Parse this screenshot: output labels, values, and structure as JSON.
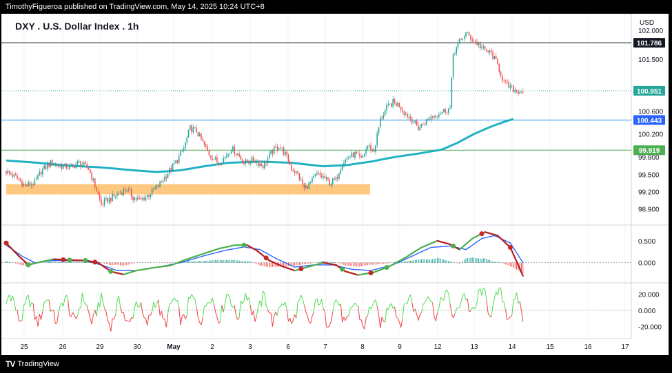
{
  "header": {
    "attribution": "TimothyFigueroa published on TradingView.com, May 14, 2025 10:24 UTC+8"
  },
  "chart": {
    "title": "DXY . U.S. Dollar Index . 1h",
    "currency": "USD"
  },
  "footer": {
    "brand": "TradingView",
    "logo_icon": "tradingview-logo-icon"
  },
  "colors": {
    "up": "#26a69a",
    "down": "#ef5350",
    "ma": "#20b2c4",
    "zone": "#ffc880",
    "macd_signal": "#b71c1c",
    "macd_line": "#2962ff",
    "cross_up": "#4caf50",
    "cross_down": "#c62828",
    "osc_up": "#4cdc4c",
    "osc_down": "#f04040"
  },
  "chart_data": [
    {
      "type": "candlestick",
      "title": "DXY . U.S. Dollar Index . 1h",
      "x_ticks": [
        "25",
        "26",
        "29",
        "30",
        "May",
        "2",
        "3",
        "6",
        "7",
        "8",
        "9",
        "12",
        "13",
        "14",
        "15",
        "16",
        "17"
      ],
      "y_ticks": [
        "102.000",
        "101.500",
        "100.600",
        "100.200",
        "99.800",
        "99.500",
        "99.200",
        "98.900"
      ],
      "y_range": [
        98.75,
        102.05
      ],
      "price_path": [
        [
          0,
          99.55
        ],
        [
          6,
          99.45
        ],
        [
          12,
          99.3
        ],
        [
          18,
          99.35
        ],
        [
          22,
          99.55
        ],
        [
          28,
          99.7
        ],
        [
          32,
          99.65
        ],
        [
          40,
          99.62
        ],
        [
          46,
          99.7
        ],
        [
          52,
          99.6
        ],
        [
          56,
          99.3
        ],
        [
          60,
          98.98
        ],
        [
          64,
          99.05
        ],
        [
          70,
          99.15
        ],
        [
          76,
          99.25
        ],
        [
          80,
          99.1
        ],
        [
          85,
          99.05
        ],
        [
          90,
          99.15
        ],
        [
          96,
          99.3
        ],
        [
          100,
          99.45
        ],
        [
          104,
          99.6
        ],
        [
          108,
          99.75
        ],
        [
          112,
          99.95
        ],
        [
          116,
          100.3
        ],
        [
          120,
          100.25
        ],
        [
          124,
          100.05
        ],
        [
          128,
          99.85
        ],
        [
          134,
          99.7
        ],
        [
          138,
          99.8
        ],
        [
          142,
          99.95
        ],
        [
          146,
          99.85
        ],
        [
          150,
          99.7
        ],
        [
          156,
          99.75
        ],
        [
          162,
          99.65
        ],
        [
          168,
          99.9
        ],
        [
          172,
          100.0
        ],
        [
          176,
          99.85
        ],
        [
          180,
          99.6
        ],
        [
          184,
          99.5
        ],
        [
          188,
          99.25
        ],
        [
          192,
          99.35
        ],
        [
          196,
          99.5
        ],
        [
          200,
          99.45
        ],
        [
          204,
          99.35
        ],
        [
          208,
          99.4
        ],
        [
          212,
          99.7
        ],
        [
          216,
          99.8
        ],
        [
          220,
          99.85
        ],
        [
          224,
          99.75
        ],
        [
          228,
          100.0
        ],
        [
          232,
          99.9
        ],
        [
          236,
          100.45
        ],
        [
          240,
          100.65
        ],
        [
          244,
          100.75
        ],
        [
          248,
          100.7
        ],
        [
          252,
          100.55
        ],
        [
          256,
          100.45
        ],
        [
          260,
          100.3
        ],
        [
          264,
          100.4
        ],
        [
          268,
          100.5
        ],
        [
          272,
          100.55
        ],
        [
          276,
          100.6
        ],
        [
          280,
          100.65
        ],
        [
          282,
          101.6
        ],
        [
          286,
          101.8
        ],
        [
          290,
          101.95
        ],
        [
          294,
          101.85
        ],
        [
          298,
          101.75
        ],
        [
          302,
          101.65
        ],
        [
          306,
          101.6
        ],
        [
          310,
          101.4
        ],
        [
          314,
          101.1
        ],
        [
          318,
          101.0
        ],
        [
          322,
          100.95
        ],
        [
          326,
          100.95
        ]
      ],
      "ma_path": [
        [
          0,
          99.74
        ],
        [
          20,
          99.7
        ],
        [
          40,
          99.65
        ],
        [
          60,
          99.62
        ],
        [
          80,
          99.57
        ],
        [
          95,
          99.54
        ],
        [
          110,
          99.57
        ],
        [
          125,
          99.64
        ],
        [
          140,
          99.7
        ],
        [
          160,
          99.72
        ],
        [
          180,
          99.7
        ],
        [
          200,
          99.64
        ],
        [
          215,
          99.66
        ],
        [
          230,
          99.72
        ],
        [
          245,
          99.8
        ],
        [
          260,
          99.86
        ],
        [
          275,
          99.93
        ],
        [
          285,
          100.05
        ],
        [
          295,
          100.2
        ],
        [
          305,
          100.32
        ],
        [
          315,
          100.42
        ],
        [
          320,
          100.46
        ]
      ],
      "demand_zone": [
        99.15,
        99.33
      ],
      "levels": [
        {
          "label": "101.786",
          "value": 101.786,
          "style": "solid",
          "color": "#131722",
          "tag_bg": "#131722"
        },
        {
          "label": "100.951",
          "value": 100.951,
          "style": "dotted",
          "color": "#26a69a",
          "tag_bg": "#26a69a"
        },
        {
          "label": "100.443",
          "value": 100.443,
          "style": "solid",
          "color": "#2196f3",
          "tag_bg": "#2962ff"
        },
        {
          "label": "99.919",
          "value": 99.919,
          "style": "solid",
          "color": "#4caf50",
          "tag_bg": "#4caf50"
        }
      ]
    },
    {
      "type": "line",
      "title": "",
      "y_ticks": [
        "0.500",
        "0.000"
      ],
      "y_range": [
        -0.35,
        0.75
      ],
      "series": [
        {
          "values": [
            [
              0,
              0.45
            ],
            [
              8,
              0.15
            ],
            [
              14,
              -0.05
            ],
            [
              22,
              0.02
            ],
            [
              30,
              0.08
            ],
            [
              40,
              0.06
            ],
            [
              50,
              0.05
            ],
            [
              58,
              0.0
            ],
            [
              66,
              -0.2
            ],
            [
              74,
              -0.27
            ],
            [
              82,
              -0.18
            ],
            [
              92,
              -0.12
            ],
            [
              104,
              -0.06
            ],
            [
              114,
              0.08
            ],
            [
              124,
              0.2
            ],
            [
              134,
              0.32
            ],
            [
              144,
              0.4
            ],
            [
              152,
              0.4
            ],
            [
              158,
              0.28
            ],
            [
              166,
              0.05
            ],
            [
              174,
              -0.08
            ],
            [
              182,
              -0.18
            ],
            [
              190,
              -0.1
            ],
            [
              200,
              0.0
            ],
            [
              208,
              -0.05
            ],
            [
              214,
              -0.2
            ],
            [
              222,
              -0.28
            ],
            [
              232,
              -0.22
            ],
            [
              242,
              -0.08
            ],
            [
              252,
              0.12
            ],
            [
              262,
              0.35
            ],
            [
              272,
              0.5
            ],
            [
              280,
              0.42
            ],
            [
              286,
              0.3
            ],
            [
              294,
              0.55
            ],
            [
              302,
              0.7
            ],
            [
              310,
              0.62
            ],
            [
              318,
              0.35
            ],
            [
              326,
              -0.3
            ]
          ]
        },
        {
          "values": [
            [
              0,
              0.4
            ],
            [
              10,
              0.15
            ],
            [
              18,
              0.0
            ],
            [
              30,
              0.05
            ],
            [
              50,
              0.04
            ],
            [
              60,
              -0.05
            ],
            [
              70,
              -0.18
            ],
            [
              82,
              -0.18
            ],
            [
              96,
              -0.1
            ],
            [
              110,
              0.0
            ],
            [
              124,
              0.15
            ],
            [
              138,
              0.28
            ],
            [
              150,
              0.36
            ],
            [
              160,
              0.3
            ],
            [
              170,
              0.1
            ],
            [
              182,
              -0.1
            ],
            [
              194,
              -0.05
            ],
            [
              206,
              -0.05
            ],
            [
              218,
              -0.15
            ],
            [
              230,
              -0.18
            ],
            [
              244,
              -0.05
            ],
            [
              256,
              0.15
            ],
            [
              268,
              0.35
            ],
            [
              280,
              0.38
            ],
            [
              290,
              0.3
            ],
            [
              300,
              0.55
            ],
            [
              308,
              0.62
            ],
            [
              318,
              0.45
            ],
            [
              326,
              0.0
            ]
          ]
        }
      ],
      "cross_up_x": [
        14,
        40,
        50,
        66,
        150,
        212,
        240,
        282
      ],
      "cross_down_x": [
        0,
        36,
        56,
        164,
        186,
        230,
        300,
        318
      ]
    },
    {
      "type": "line",
      "title": "",
      "y_ticks": [
        "20.000",
        "0.000",
        "-20.000"
      ],
      "y_range": [
        -30,
        30
      ],
      "oscillator_seed": 7
    }
  ]
}
